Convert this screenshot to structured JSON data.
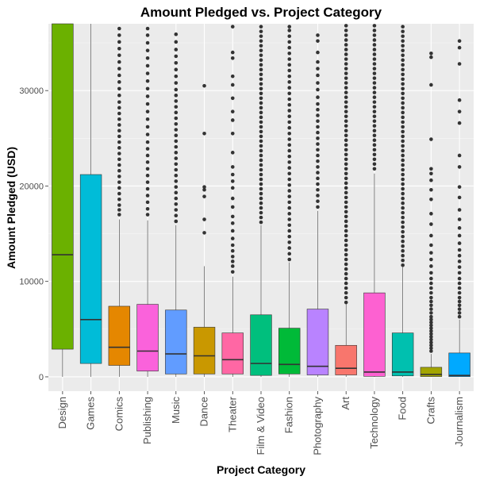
{
  "chart_data": {
    "type": "boxplot",
    "title": "Amount Pledged vs. Project Category",
    "xlabel": "Project Category",
    "ylabel": "Amount Pledged (USD)",
    "ylim": [
      -1500,
      37000
    ],
    "yticks": [
      0,
      10000,
      20000,
      30000
    ],
    "ytick_labels": [
      "0",
      "10000",
      "20000",
      "30000"
    ],
    "grid": true,
    "background": "#ebebeb",
    "categories": [
      "Design",
      "Games",
      "Comics",
      "Publishing",
      "Music",
      "Dance",
      "Theater",
      "Film & Video",
      "Fashion",
      "Photography",
      "Art",
      "Technology",
      "Food",
      "Crafts",
      "Journalism"
    ],
    "colors": [
      "#6bb100",
      "#00bcd8",
      "#e58700",
      "#fa62db",
      "#619cff",
      "#c99800",
      "#ff67a4",
      "#00bf7d",
      "#00ba38",
      "#b983ff",
      "#f8766d",
      "#fd61d1",
      "#00c0af",
      "#a3a500",
      "#00a9ff"
    ],
    "series": [
      {
        "q1": 2900,
        "median": 12800,
        "q3": 37000,
        "whisker_low": 0,
        "whisker_high": 37000,
        "outliers": []
      },
      {
        "q1": 1400,
        "median": 6000,
        "q3": 21200,
        "whisker_low": 0,
        "whisker_high": 37000,
        "outliers": []
      },
      {
        "q1": 1200,
        "median": 3100,
        "q3": 7400,
        "whisker_low": 0,
        "whisker_high": 16500,
        "outliers": [
          17000,
          17500,
          18000,
          18600,
          19200,
          19800,
          20400,
          21000,
          21600,
          22200,
          22800,
          23400,
          24000,
          24600,
          25200,
          25800,
          26400,
          27000,
          27600,
          28200,
          28800,
          29500,
          30200,
          30900,
          31600,
          32300,
          33000,
          33700,
          34400,
          35100,
          35800,
          36500
        ]
      },
      {
        "q1": 600,
        "median": 2700,
        "q3": 7600,
        "whisker_low": 0,
        "whisker_high": 16400,
        "outliers": [
          17000,
          17600,
          18300,
          19000,
          19700,
          20400,
          21100,
          21800,
          22500,
          23200,
          23900,
          24600,
          25400,
          26200,
          27000,
          27800,
          28600,
          29400,
          30200,
          31000,
          31800,
          32600,
          33400,
          34200,
          35000,
          35800,
          36500
        ]
      },
      {
        "q1": 300,
        "median": 2400,
        "q3": 7000,
        "whisker_low": 0,
        "whisker_high": 15900,
        "outliers": [
          16300,
          16900,
          17500,
          18100,
          18700,
          19300,
          19900,
          20500,
          21100,
          21700,
          22300,
          22900,
          23500,
          24100,
          24700,
          25300,
          25900,
          26500,
          27100,
          27700,
          28300,
          28900,
          29500,
          30100,
          30800,
          31500,
          32200,
          32900,
          33600,
          34300,
          35100,
          35900
        ]
      },
      {
        "q1": 300,
        "median": 2200,
        "q3": 5200,
        "whisker_low": 0,
        "whisker_high": 11600,
        "outliers": [
          15100,
          16500,
          18900,
          19600,
          19900,
          25500,
          30500
        ]
      },
      {
        "q1": 300,
        "median": 1800,
        "q3": 4600,
        "whisker_low": 0,
        "whisker_high": 10500,
        "outliers": [
          11000,
          11600,
          12100,
          12600,
          13200,
          13800,
          14500,
          15300,
          16100,
          16800,
          17800,
          18700,
          19800,
          20500,
          21200,
          22000,
          23500,
          25500,
          26900,
          27800,
          29200,
          30600,
          31500,
          33400,
          34000,
          36700
        ]
      },
      {
        "q1": 150,
        "median": 1400,
        "q3": 6500,
        "whisker_low": 0,
        "whisker_high": 15900,
        "outliers": [
          16200,
          16700,
          17200,
          17700,
          18200,
          18700,
          19200,
          19700,
          20200,
          20700,
          21200,
          21700,
          22200,
          22700,
          23200,
          23700,
          24200,
          24700,
          25200,
          25700,
          26200,
          26700,
          27200,
          27700,
          28200,
          28700,
          29200,
          29700,
          30200,
          30700,
          31200,
          31700,
          32200,
          32700,
          33200,
          33700,
          34200,
          34700,
          35200,
          35700,
          36200,
          36700
        ]
      },
      {
        "q1": 300,
        "median": 1300,
        "q3": 5100,
        "whisker_low": 0,
        "whisker_high": 12000,
        "outliers": [
          12300,
          12900,
          13500,
          14100,
          14700,
          15300,
          15900,
          16500,
          17100,
          17700,
          18300,
          18900,
          19500,
          20100,
          20700,
          21300,
          21900,
          22500,
          23100,
          23700,
          24300,
          24900,
          25500,
          26100,
          26700,
          27300,
          27900,
          28500,
          29100,
          29700,
          30300,
          30900,
          31500,
          32100,
          32700,
          33300,
          33900,
          34500,
          35100,
          35700,
          36300,
          36700
        ]
      },
      {
        "q1": 200,
        "median": 1100,
        "q3": 7100,
        "whisker_low": 0,
        "whisker_high": 17400,
        "outliers": [
          17800,
          18400,
          19000,
          19600,
          20200,
          20800,
          21400,
          22000,
          22600,
          23200,
          23800,
          24400,
          25000,
          25600,
          26200,
          26800,
          27400,
          28000,
          28600,
          29300,
          30100,
          30800,
          31600,
          32300,
          33000,
          34000,
          35200,
          35800
        ]
      },
      {
        "q1": 200,
        "median": 900,
        "q3": 3300,
        "whisker_low": 0,
        "whisker_high": 7700,
        "outliers": [
          7800,
          8300,
          8800,
          9300,
          9800,
          10300,
          10800,
          11300,
          11800,
          12300,
          12800,
          13300,
          13800,
          14300,
          14800,
          15300,
          15800,
          16300,
          16800,
          17300,
          17800,
          18300,
          18800,
          19300,
          19800,
          20300,
          20800,
          21300,
          21800,
          22300,
          22800,
          23300,
          23800,
          24300,
          24800,
          25300,
          25800,
          26300,
          26800,
          27300,
          27800,
          28300,
          28800,
          29300,
          29800,
          30300,
          30800,
          31300,
          31800,
          32300,
          32800,
          33300,
          33800,
          34300,
          34800,
          35300,
          35800,
          36300,
          36800
        ]
      },
      {
        "q1": 50,
        "median": 500,
        "q3": 8800,
        "whisker_low": 0,
        "whisker_high": 21300,
        "outliers": [
          21800,
          22300,
          22800,
          23300,
          23800,
          24300,
          24800,
          25300,
          25800,
          26300,
          26800,
          27300,
          27800,
          28300,
          28800,
          29300,
          29800,
          30300,
          30800,
          31300,
          31800,
          32300,
          32800,
          33300,
          33800,
          34300,
          34800,
          35300,
          35800,
          36300,
          36800
        ]
      },
      {
        "q1": 100,
        "median": 500,
        "q3": 4600,
        "whisker_low": 0,
        "whisker_high": 11500,
        "outliers": [
          11700,
          12200,
          12700,
          13200,
          13700,
          14200,
          14700,
          15200,
          15700,
          16200,
          16700,
          17200,
          17700,
          18200,
          18700,
          19200,
          19700,
          20200,
          20700,
          21200,
          21700,
          22200,
          22700,
          23200,
          23700,
          24200,
          24700,
          25200,
          25700,
          26200,
          26700,
          27200,
          27700,
          28200,
          28700,
          29200,
          29700,
          30200,
          30700,
          31200,
          31700,
          32200,
          32700,
          33200,
          33700,
          34200,
          34700,
          35200,
          35700,
          36200,
          36700
        ]
      },
      {
        "q1": 30,
        "median": 250,
        "q3": 1000,
        "whisker_low": 0,
        "whisker_high": 2400,
        "outliers": [
          2700,
          3000,
          3300,
          3600,
          3900,
          4200,
          4500,
          4800,
          5100,
          5400,
          5700,
          6000,
          6300,
          6700,
          7100,
          7500,
          7900,
          8300,
          8800,
          9300,
          9800,
          10300,
          10900,
          11600,
          12300,
          13000,
          13800,
          14800,
          16000,
          17100,
          18600,
          19600,
          20600,
          21300,
          21800,
          24900,
          30600,
          33500,
          33900
        ]
      },
      {
        "q1": 20,
        "median": 150,
        "q3": 2500,
        "whisker_low": 0,
        "whisker_high": 6000,
        "outliers": [
          6300,
          6700,
          7100,
          7500,
          7900,
          8300,
          8800,
          9300,
          9800,
          10300,
          10900,
          11500,
          12100,
          12700,
          13300,
          14000,
          14800,
          15600,
          16500,
          17500,
          18800,
          19900,
          22000,
          23200,
          26600,
          27800,
          29000,
          32800,
          34500,
          35200
        ]
      }
    ]
  }
}
